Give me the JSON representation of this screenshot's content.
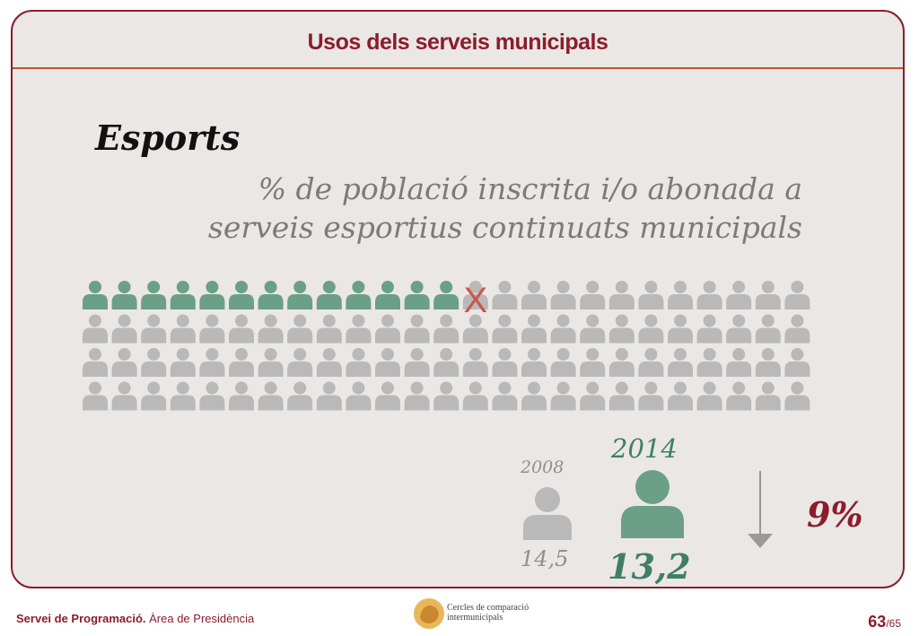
{
  "header": {
    "title": "Usos dels serveis municipals"
  },
  "section": {
    "title": "Esports",
    "subtitle_line1": "% de població inscrita i/o abonada a",
    "subtitle_line2": "serveis esportius continuats municipals"
  },
  "pictogram": {
    "total_figures": 100,
    "highlighted_figures": 13,
    "marked_label": "X",
    "highlight_color": "#6b9f88",
    "base_color": "#b9b9b9",
    "mark_color": "#c9574f"
  },
  "comparison": {
    "year_old": "2008",
    "value_old": "14,5",
    "year_new": "2014",
    "value_new": "13,2",
    "change_label": "9%",
    "change_direction": "down"
  },
  "footer": {
    "org_bold": "Servei de Programació.",
    "org_rest": " Àrea de Presidència",
    "logo_line1": "Cercles de comparació",
    "logo_line2": "intermunicipals",
    "page_current": "63",
    "page_total": "/65"
  },
  "colors": {
    "accent": "#8b1d2c",
    "green": "#6b9f88",
    "grey": "#b9b9b9",
    "background": "#ebe7e4"
  }
}
